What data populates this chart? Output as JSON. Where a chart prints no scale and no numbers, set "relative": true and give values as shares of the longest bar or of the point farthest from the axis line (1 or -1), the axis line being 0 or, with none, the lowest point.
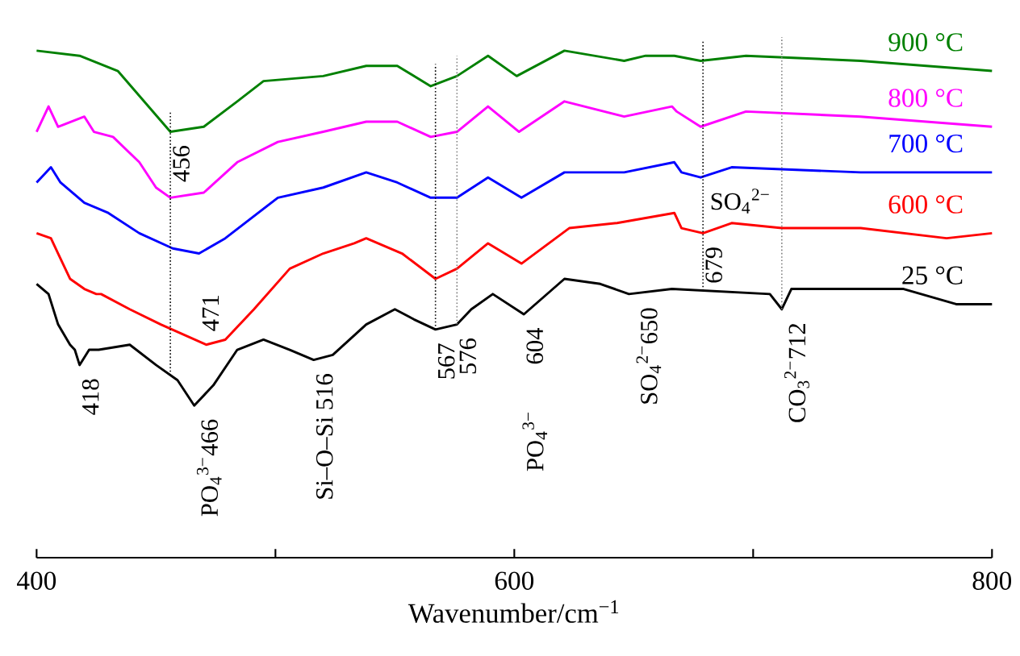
{
  "chart_data": {
    "type": "line",
    "relative": true,
    "xlabel": "Wavenumber/cm$^{−1}$",
    "xlim": [
      400,
      800
    ],
    "xticks": [
      400,
      {
        "value": 500,
        "label": null
      },
      600,
      {
        "value": 700,
        "label": null
      },
      800
    ],
    "series": [
      {
        "name": "900 °C",
        "color": "#008000",
        "x": [
          400,
          418,
          434,
          445,
          456,
          470,
          484,
          495,
          520,
          538,
          551,
          565,
          576,
          589,
          601,
          621,
          646,
          655,
          667,
          678,
          697,
          745,
          800
        ],
        "values": [
          1.0,
          0.99,
          0.96,
          0.9,
          0.84,
          0.85,
          0.9,
          0.94,
          0.95,
          0.97,
          0.97,
          0.93,
          0.95,
          0.99,
          0.95,
          1.0,
          0.98,
          0.99,
          0.99,
          0.98,
          0.99,
          0.98,
          0.96
        ]
      },
      {
        "name": "800 °C",
        "color": "#ff00ff",
        "x": [
          400,
          405,
          409,
          420,
          424,
          432,
          443,
          450,
          456,
          470,
          484,
          501,
          520,
          538,
          551,
          565,
          576,
          589,
          602,
          621,
          646,
          666,
          668,
          678,
          697,
          745,
          800
        ],
        "values": [
          0.84,
          0.89,
          0.85,
          0.87,
          0.84,
          0.83,
          0.78,
          0.73,
          0.71,
          0.72,
          0.78,
          0.82,
          0.84,
          0.86,
          0.86,
          0.83,
          0.84,
          0.89,
          0.84,
          0.9,
          0.87,
          0.89,
          0.88,
          0.85,
          0.88,
          0.87,
          0.85
        ]
      },
      {
        "name": "700 °C",
        "color": "#0000ff",
        "x": [
          400,
          406,
          410,
          420,
          430,
          443,
          457,
          468,
          479,
          501,
          520,
          538,
          551,
          565,
          576,
          589,
          603,
          621,
          646,
          667,
          670,
          678,
          691,
          745,
          800
        ],
        "values": [
          0.74,
          0.77,
          0.74,
          0.7,
          0.68,
          0.64,
          0.61,
          0.6,
          0.63,
          0.71,
          0.73,
          0.76,
          0.74,
          0.71,
          0.71,
          0.75,
          0.71,
          0.76,
          0.76,
          0.78,
          0.76,
          0.75,
          0.77,
          0.76,
          0.76
        ]
      },
      {
        "name": "600 °C",
        "color": "#ff0000",
        "x": [
          400,
          406,
          409,
          414,
          420,
          425,
          427,
          439,
          452,
          471,
          479,
          491,
          506,
          520,
          533,
          538,
          553,
          567,
          576,
          589,
          603,
          623,
          643,
          667,
          670,
          679,
          691,
          712,
          745,
          781,
          800
        ],
        "values": [
          0.64,
          0.63,
          0.6,
          0.55,
          0.53,
          0.52,
          0.52,
          0.49,
          0.46,
          0.42,
          0.43,
          0.49,
          0.57,
          0.6,
          0.62,
          0.63,
          0.6,
          0.55,
          0.57,
          0.62,
          0.58,
          0.65,
          0.66,
          0.68,
          0.65,
          0.64,
          0.66,
          0.65,
          0.65,
          0.63,
          0.64
        ]
      },
      {
        "name": "25 °C",
        "color": "#000000",
        "x": [
          400,
          405,
          409,
          414,
          416,
          418,
          422,
          426,
          439,
          450,
          459,
          466,
          474,
          484,
          495,
          506,
          516,
          524,
          538,
          550,
          558,
          567,
          576,
          582,
          591,
          604,
          621,
          636,
          648,
          666,
          707,
          712,
          716,
          763,
          785,
          800
        ],
        "values": [
          0.54,
          0.52,
          0.46,
          0.42,
          0.41,
          0.38,
          0.41,
          0.41,
          0.42,
          0.38,
          0.35,
          0.3,
          0.34,
          0.41,
          0.43,
          0.41,
          0.39,
          0.4,
          0.46,
          0.49,
          0.47,
          0.45,
          0.46,
          0.49,
          0.52,
          0.48,
          0.55,
          0.54,
          0.52,
          0.53,
          0.52,
          0.49,
          0.53,
          0.53,
          0.5,
          0.5
        ]
      }
    ],
    "ref_lines": [
      {
        "axis": "x",
        "value": 456,
        "color": "#000000",
        "line_style": "dotted"
      },
      {
        "axis": "x",
        "value": 567,
        "color": "#000000",
        "line_style": "dotted"
      },
      {
        "axis": "x",
        "value": 576,
        "color": "#808080",
        "line_style": "dotted"
      },
      {
        "axis": "x",
        "value": 679,
        "color": "#000000",
        "line_style": "dotted"
      },
      {
        "axis": "x",
        "value": 712,
        "color": "#808080",
        "line_style": "dotted"
      }
    ],
    "annotations": [
      {
        "text": "456",
        "x": 456,
        "y": 0.84
      },
      {
        "text": "471",
        "x": 471,
        "y": 0.42
      },
      {
        "text": "418",
        "x": 418,
        "y": 0.38
      },
      {
        "text": "PO$_{4}$$^{3−}$466",
        "x": 466,
        "y": 0.3
      },
      {
        "text": "Si–O–Si 516",
        "x": 516,
        "y": 0.39
      },
      {
        "text": "567",
        "x": 567,
        "y": 0.45
      },
      {
        "text": "576",
        "x": 576,
        "y": 0.46
      },
      {
        "text": "604",
        "x": 604,
        "y": 0.48
      },
      "PO$_{4}$$^{3−}$",
      {
        "text": "SO$_{4}$$^{2−}$650",
        "x": 650,
        "y": 0.52
      },
      {
        "text": "679",
        "x": 679,
        "y": 0.64
      },
      {
        "text": "CO$_{3}$$^{2−}$712",
        "x": 712,
        "y": 0.49
      },
      {
        "text": "SO$_{4}$$^{2−}$",
        "x": 679,
        "y": 0.64
      }
    ]
  }
}
